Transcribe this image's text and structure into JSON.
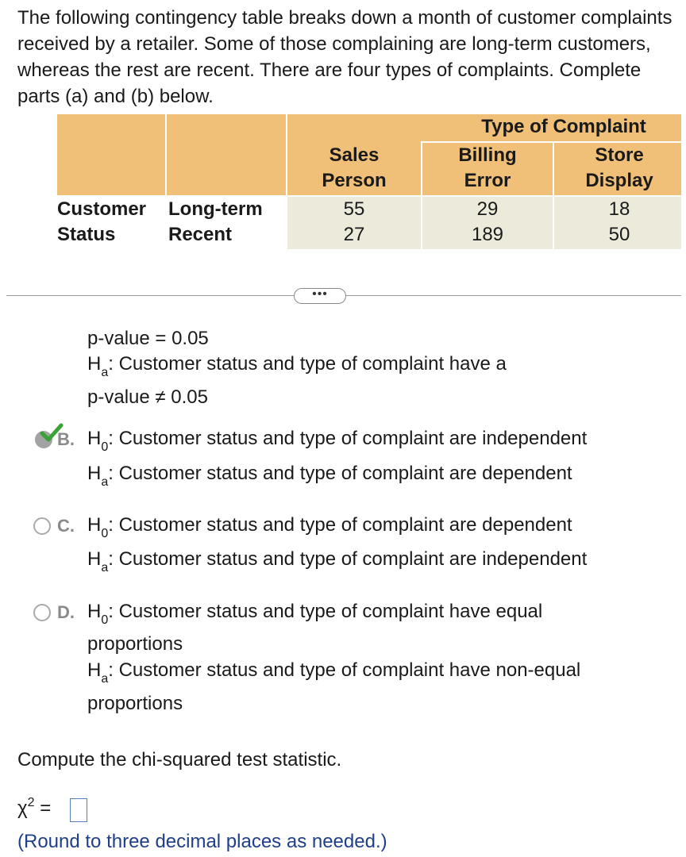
{
  "intro": "The following contingency table breaks down a month of customer complaints received by a retailer. Some of those complaining are long-term customers, whereas the rest are recent. There are four types of complaints. Complete parts (a) and (b) below.",
  "table": {
    "group_header": "Type of Complaint",
    "col_sales_line1": "Sales",
    "col_sales_line2": "Person",
    "col_billing_line1": "Billing",
    "col_billing_line2": "Error",
    "col_store_line1": "Store",
    "col_store_line2": "Display",
    "row_group_line1": "Customer",
    "row_group_line2": "Status",
    "rows": [
      {
        "label": "Long-term",
        "sales": "55",
        "billing": "29",
        "store": "18"
      },
      {
        "label": "Recent",
        "sales": "27",
        "billing": "189",
        "store": "50"
      }
    ]
  },
  "more_button": "•••",
  "optionA_partial": {
    "line1": "p-value = 0.05",
    "line2_prefix": "H",
    "line2_sub": "a",
    "line2_text": ": Customer status and type of complaint have a",
    "line3": "p-value ≠ 0.05"
  },
  "options": [
    {
      "letter": "B.",
      "selected": true,
      "h0_sub": "0",
      "h0_text": ": Customer status and type of complaint are independent",
      "ha_sub": "a",
      "ha_text": ": Customer status and type of complaint are dependent"
    },
    {
      "letter": "C.",
      "selected": false,
      "h0_sub": "0",
      "h0_text": ": Customer status and type of complaint are dependent",
      "ha_sub": "a",
      "ha_text": ": Customer status and type of complaint are independent"
    },
    {
      "letter": "D.",
      "selected": false,
      "h0_sub": "0",
      "h0_text": ": Customer status and type of complaint have equal",
      "h0_cont": "proportions",
      "ha_sub": "a",
      "ha_text": ": Customer status and type of complaint have non-equal",
      "ha_cont": "proportions"
    }
  ],
  "h_letter": "H",
  "prompt": "Compute the chi-squared test statistic.",
  "chi": {
    "symbol": "χ",
    "exp": "2",
    "eq": "="
  },
  "hint": "(Round to three decimal places as needed.)",
  "colors": {
    "header_bg": "#f0c078",
    "body_bg": "#eceadb",
    "hint": "#1f3f8a",
    "check": "#3aa335"
  }
}
